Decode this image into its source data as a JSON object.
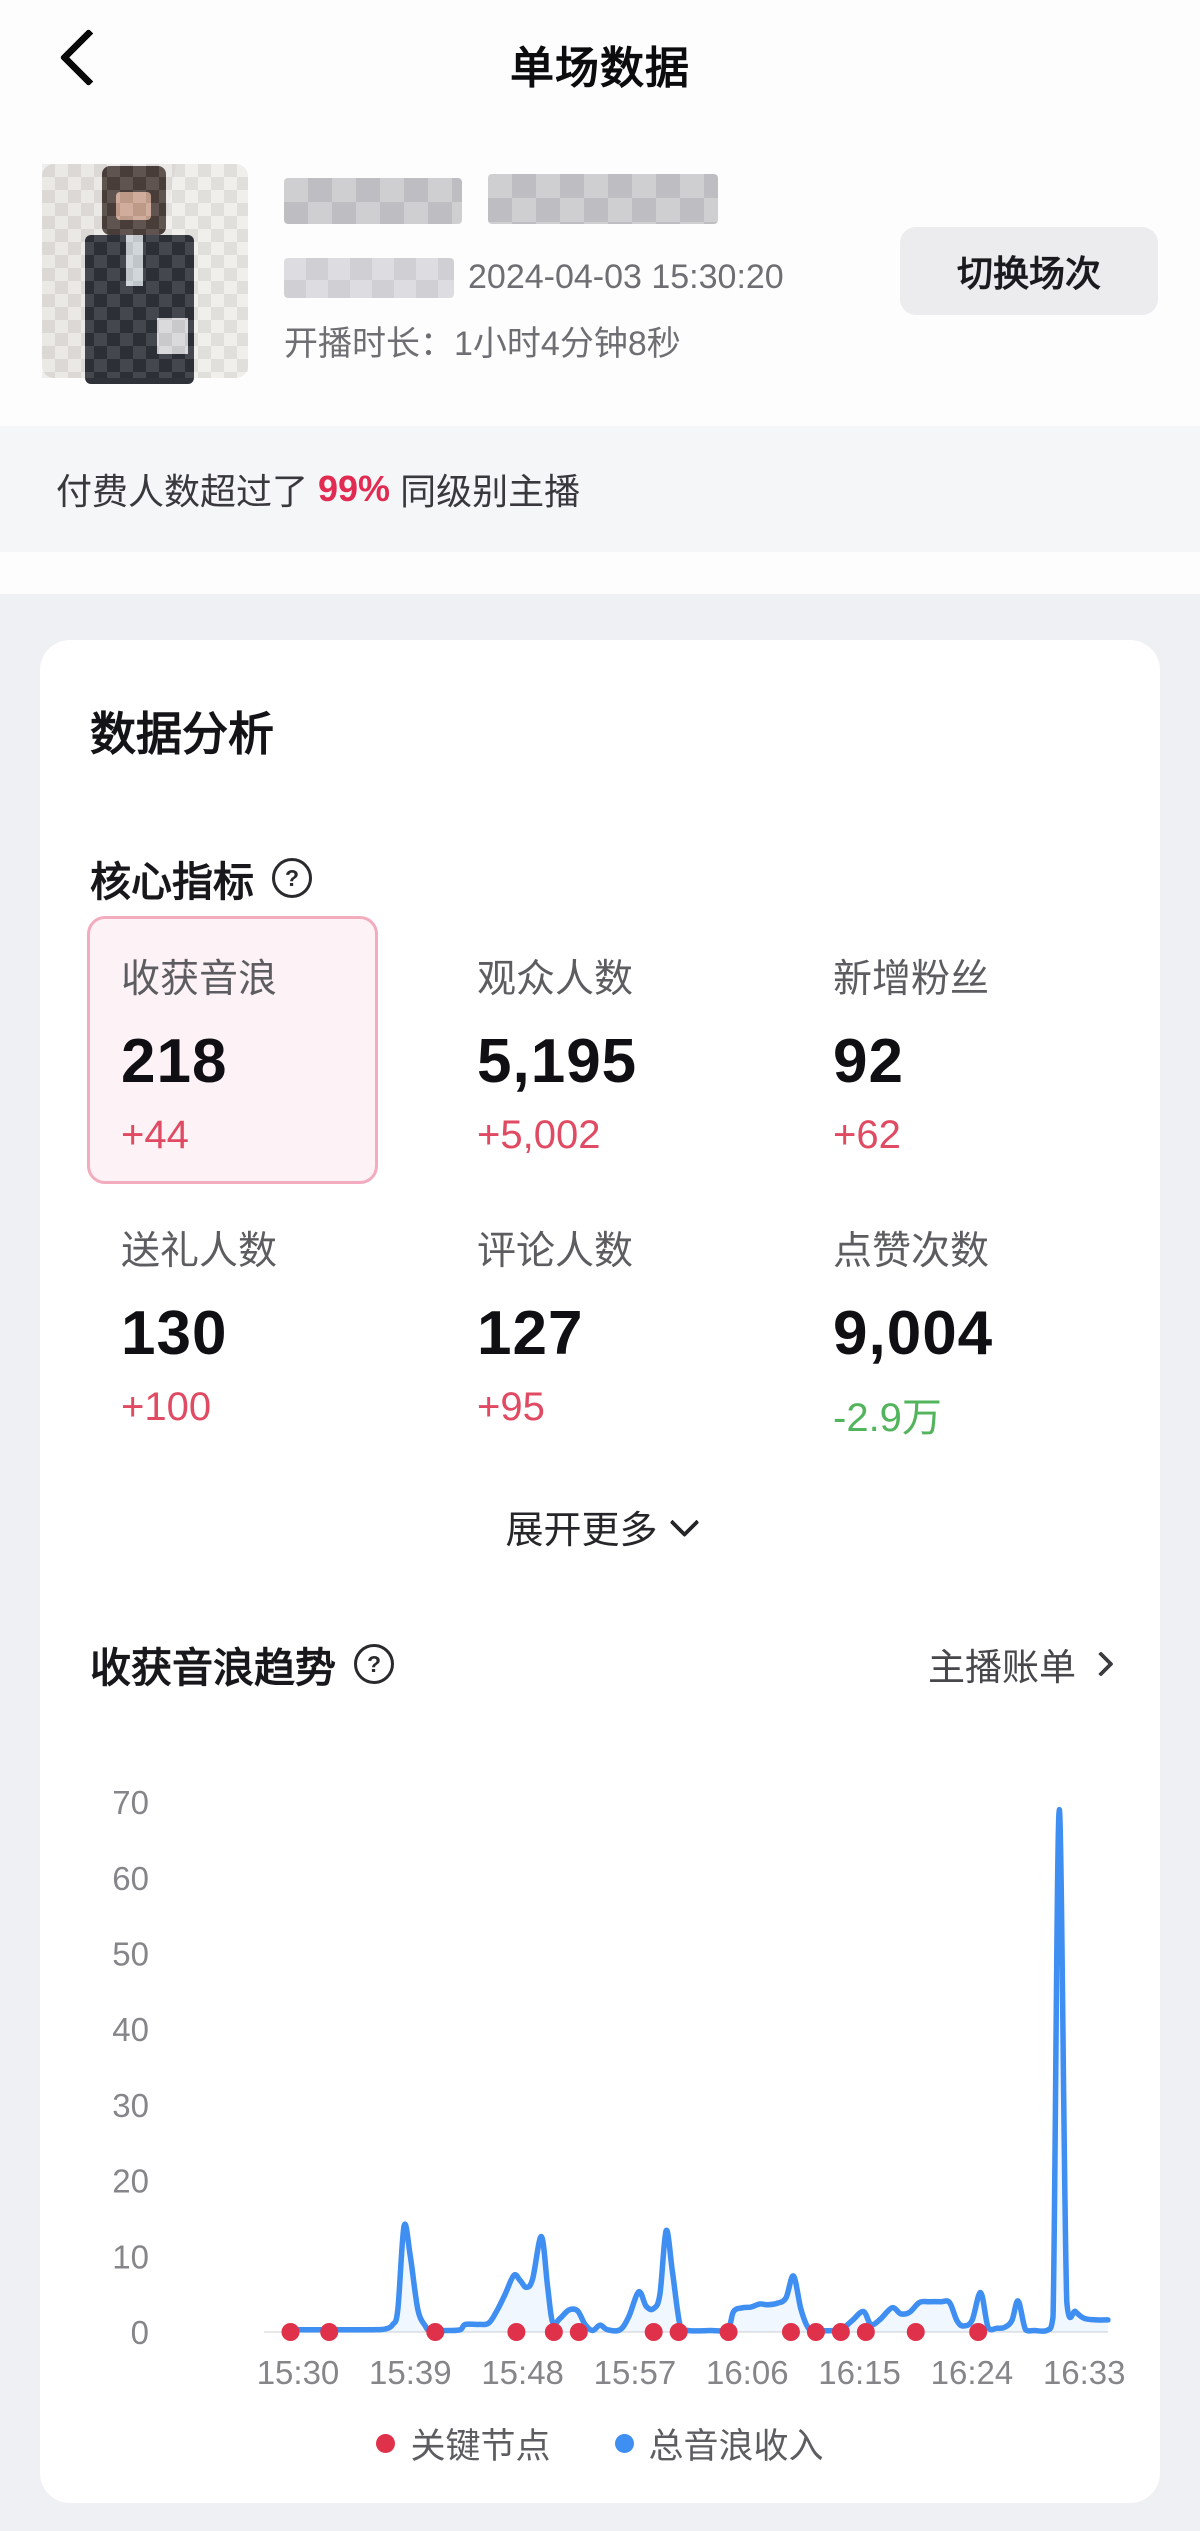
{
  "header": {
    "title": "单场数据"
  },
  "profile": {
    "stream_start": "2024-04-03 15:30:20",
    "duration": "开播时长：1小时4分钟8秒",
    "switch_button": "切换场次"
  },
  "banner": {
    "prefix": "付费人数超过了",
    "highlight": "99%",
    "suffix": "同级别主播"
  },
  "analysis": {
    "title": "数据分析",
    "core_title": "核心指标",
    "help_glyph": "?",
    "metrics": [
      {
        "label": "收获音浪",
        "value": "218",
        "delta": "+44",
        "delta_color": "red",
        "selected": true
      },
      {
        "label": "观众人数",
        "value": "5,195",
        "delta": "+5,002",
        "delta_color": "red",
        "selected": false
      },
      {
        "label": "新增粉丝",
        "value": "92",
        "delta": "+62",
        "delta_color": "red",
        "selected": false
      },
      {
        "label": "送礼人数",
        "value": "130",
        "delta": "+100",
        "delta_color": "red",
        "selected": false
      },
      {
        "label": "评论人数",
        "value": "127",
        "delta": "+95",
        "delta_color": "red",
        "selected": false
      },
      {
        "label": "点赞次数",
        "value": "9,004",
        "delta": "-2.9万",
        "delta_color": "green",
        "selected": false
      }
    ],
    "expand_more": "展开更多"
  },
  "trend": {
    "title": "收获音浪趋势",
    "link": "主播账单"
  },
  "legend": [
    {
      "label": "关键节点",
      "color": "#e0314b"
    },
    {
      "label": "总音浪收入",
      "color": "#3f8ef1"
    }
  ],
  "colors": {
    "delta_red": "#e04a62",
    "delta_green": "#52b45c",
    "banner_red": "#e22b50",
    "line_blue": "#3f8ef1",
    "dot_red": "#e0314b",
    "selected_border": "#f3abbe",
    "selected_bg": "#fdf2f5",
    "page_bg": "#eff0f4"
  },
  "chart_data": {
    "type": "line",
    "title": "收获音浪趋势",
    "xlabel": "",
    "ylabel": "",
    "grid": false,
    "legend_position": "bottom",
    "ylim": [
      0,
      70
    ],
    "y_ticks": [
      0,
      10,
      20,
      30,
      40,
      50,
      60,
      70
    ],
    "x_ticks": [
      "15:30",
      "15:39",
      "15:48",
      "15:57",
      "16:06",
      "16:15",
      "16:24",
      "16:33"
    ],
    "x_tick_minutes": [
      0,
      9,
      18,
      27,
      36,
      45,
      54,
      63
    ],
    "series": [
      {
        "name": "总音浪收入",
        "type": "line",
        "color": "#3f8ef1",
        "points": [
          [
            -0.6,
            0.3
          ],
          [
            2,
            0.3
          ],
          [
            4,
            0.3
          ],
          [
            6,
            0.3
          ],
          [
            7,
            0.4
          ],
          [
            7.6,
            1
          ],
          [
            8,
            3
          ],
          [
            8.5,
            14
          ],
          [
            9,
            10
          ],
          [
            9.6,
            3
          ],
          [
            10.2,
            0.8
          ],
          [
            10.6,
            0.2
          ],
          [
            12,
            0.2
          ],
          [
            13,
            0.3
          ],
          [
            13.4,
            1
          ],
          [
            14.5,
            1
          ],
          [
            15.3,
            1.2
          ],
          [
            16,
            3
          ],
          [
            16.6,
            5
          ],
          [
            17.3,
            7.5
          ],
          [
            17.8,
            6.8
          ],
          [
            18.3,
            5.9
          ],
          [
            18.8,
            7
          ],
          [
            19.5,
            12.6
          ],
          [
            20,
            6
          ],
          [
            20.4,
            1.3
          ],
          [
            21,
            1.8
          ],
          [
            21.7,
            2.9
          ],
          [
            22.4,
            2.8
          ],
          [
            23,
            1
          ],
          [
            23.6,
            0.2
          ],
          [
            24.2,
            0.9
          ],
          [
            24.8,
            0.3
          ],
          [
            25.8,
            0.3
          ],
          [
            26.5,
            2
          ],
          [
            27.3,
            5.3
          ],
          [
            27.9,
            3.4
          ],
          [
            28.5,
            3.1
          ],
          [
            29,
            5
          ],
          [
            29.5,
            13.4
          ],
          [
            30,
            8
          ],
          [
            30.6,
            1
          ],
          [
            31.2,
            0.2
          ],
          [
            33,
            0.2
          ],
          [
            34.4,
            0.3
          ],
          [
            34.9,
            2.7
          ],
          [
            35.6,
            3.2
          ],
          [
            36.3,
            3.3
          ],
          [
            37,
            3.7
          ],
          [
            37.6,
            3.6
          ],
          [
            38.4,
            3.8
          ],
          [
            39.1,
            4.5
          ],
          [
            39.7,
            7.4
          ],
          [
            40.3,
            3
          ],
          [
            40.9,
            0.5
          ],
          [
            41.5,
            0.2
          ],
          [
            43,
            0.2
          ],
          [
            43.6,
            0.4
          ],
          [
            44.4,
            1.5
          ],
          [
            45.3,
            2.7
          ],
          [
            45.9,
            1
          ],
          [
            46.6,
            1.6
          ],
          [
            47.6,
            3.2
          ],
          [
            48.3,
            2.4
          ],
          [
            49,
            2.6
          ],
          [
            49.8,
            3.9
          ],
          [
            50.6,
            4
          ],
          [
            51.5,
            4
          ],
          [
            52.2,
            3.9
          ],
          [
            52.8,
            1.5
          ],
          [
            53.3,
            0.8
          ],
          [
            54,
            1.5
          ],
          [
            54.7,
            5.2
          ],
          [
            55.3,
            0.6
          ],
          [
            56,
            0.5
          ],
          [
            56.6,
            0.6
          ],
          [
            57.2,
            1.5
          ],
          [
            57.7,
            4.1
          ],
          [
            58.3,
            0.3
          ],
          [
            59,
            0.2
          ],
          [
            60,
            0.2
          ],
          [
            60.5,
            2
          ],
          [
            61,
            69
          ],
          [
            61.6,
            4
          ],
          [
            62.3,
            2.7
          ],
          [
            63,
            1.8
          ],
          [
            64,
            1.6
          ],
          [
            64.9,
            1.6
          ]
        ]
      },
      {
        "name": "关键节点",
        "type": "scatter",
        "color": "#e0314b",
        "points": [
          [
            -0.6,
            0
          ],
          [
            2.5,
            0
          ],
          [
            11,
            0
          ],
          [
            17.5,
            0
          ],
          [
            20.5,
            0
          ],
          [
            22.5,
            0
          ],
          [
            28.5,
            0
          ],
          [
            30.5,
            0
          ],
          [
            34.5,
            0
          ],
          [
            39.5,
            0
          ],
          [
            41.5,
            0
          ],
          [
            43.5,
            0
          ],
          [
            45.5,
            0
          ],
          [
            49.5,
            0
          ],
          [
            54.5,
            0
          ]
        ]
      }
    ]
  }
}
